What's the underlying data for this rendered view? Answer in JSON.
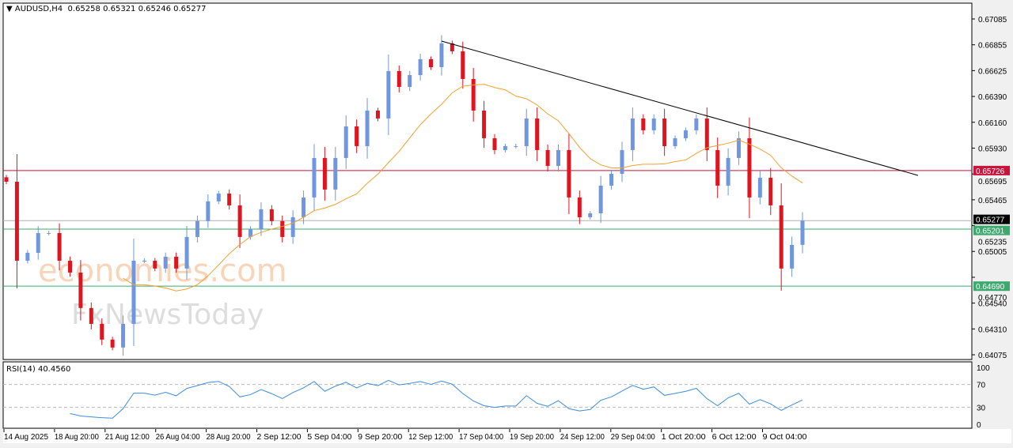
{
  "header": {
    "symbol": "AUDUSD,H4",
    "ohlc": "0.65258 0.65321 0.65246 0.65277"
  },
  "rsi": {
    "label": "RSI(14) 40.4560",
    "levels": [
      30,
      70
    ],
    "scale_labels": [
      "100",
      "70",
      "30",
      "0"
    ]
  },
  "watermark": {
    "line1": "economies.com",
    "line2": "FxNewsToday"
  },
  "colors": {
    "bull": "#6f96de",
    "bear": "#e0141e",
    "ma": "#f0a030",
    "resistance": "#c8143c",
    "support": "#3caa6e",
    "bid": "#000000",
    "rsi_line": "#3c8cdc",
    "trendline": "#000000"
  },
  "chart_data": {
    "type": "candlestick",
    "symbol": "AUDUSD",
    "timeframe": "H4",
    "ylim": [
      0.64075,
      0.67085
    ],
    "y_ticks": [
      "0.67085",
      "0.66855",
      "0.66625",
      "0.66390",
      "0.66160",
      "0.65930",
      "0.65695",
      "0.65465",
      "0.65235",
      "0.65005",
      "0.64770",
      "0.64540",
      "0.64310",
      "0.64075"
    ],
    "x_ticks": [
      "14 Aug 2025",
      "18 Aug 20:00",
      "21 Aug 12:00",
      "26 Aug 04:00",
      "28 Aug 20:00",
      "2 Sep 12:00",
      "5 Sep 04:00",
      "9 Sep 20:00",
      "12 Sep 12:00",
      "17 Sep 04:00",
      "19 Sep 20:00",
      "24 Sep 12:00",
      "29 Sep 04:00",
      "1 Oct 20:00",
      "6 Oct 12:00",
      "9 Oct 04:00"
    ],
    "closes": [
      0.65626,
      0.64918,
      0.64989,
      0.65166,
      0.65166,
      0.64918,
      0.64812,
      0.64494,
      0.64352,
      0.64211,
      0.6414,
      0.64352,
      0.64918,
      0.64918,
      0.64848,
      0.64954,
      0.64848,
      0.65131,
      0.65273,
      0.6545,
      0.6552,
      0.65414,
      0.65131,
      0.65202,
      0.65379,
      0.65273,
      0.65131,
      0.65308,
      0.65485,
      0.65839,
      0.65556,
      0.65839,
      0.66122,
      0.65945,
      0.66264,
      0.66193,
      0.66618,
      0.66476,
      0.66582,
      0.66724,
      0.66653,
      0.66866,
      0.66795,
      0.66547,
      0.66264,
      0.66016,
      0.6591,
      0.65945,
      0.65945,
      0.66193,
      0.6591,
      0.65768,
      0.6591,
      0.65485,
      0.65308,
      0.65343,
      0.65591,
      0.65697,
      0.6591,
      0.66193,
      0.66087,
      0.66193,
      0.65945,
      0.66016,
      0.66087,
      0.66193,
      0.6591,
      0.65591,
      0.65839,
      0.66016,
      0.65485,
      0.65662,
      0.65414,
      0.64848,
      0.6506,
      0.65277
    ],
    "horizontal_levels": [
      {
        "price": "0.65726",
        "role": "resistance"
      },
      {
        "price": "0.65277",
        "role": "bid"
      },
      {
        "price": "0.65201",
        "role": "support"
      },
      {
        "price": "0.64690",
        "role": "support"
      }
    ],
    "trendline": {
      "from": {
        "time": "12 Sep 12:00",
        "price": 0.66887
      },
      "to_price": 0.65683
    },
    "moving_average": true
  }
}
